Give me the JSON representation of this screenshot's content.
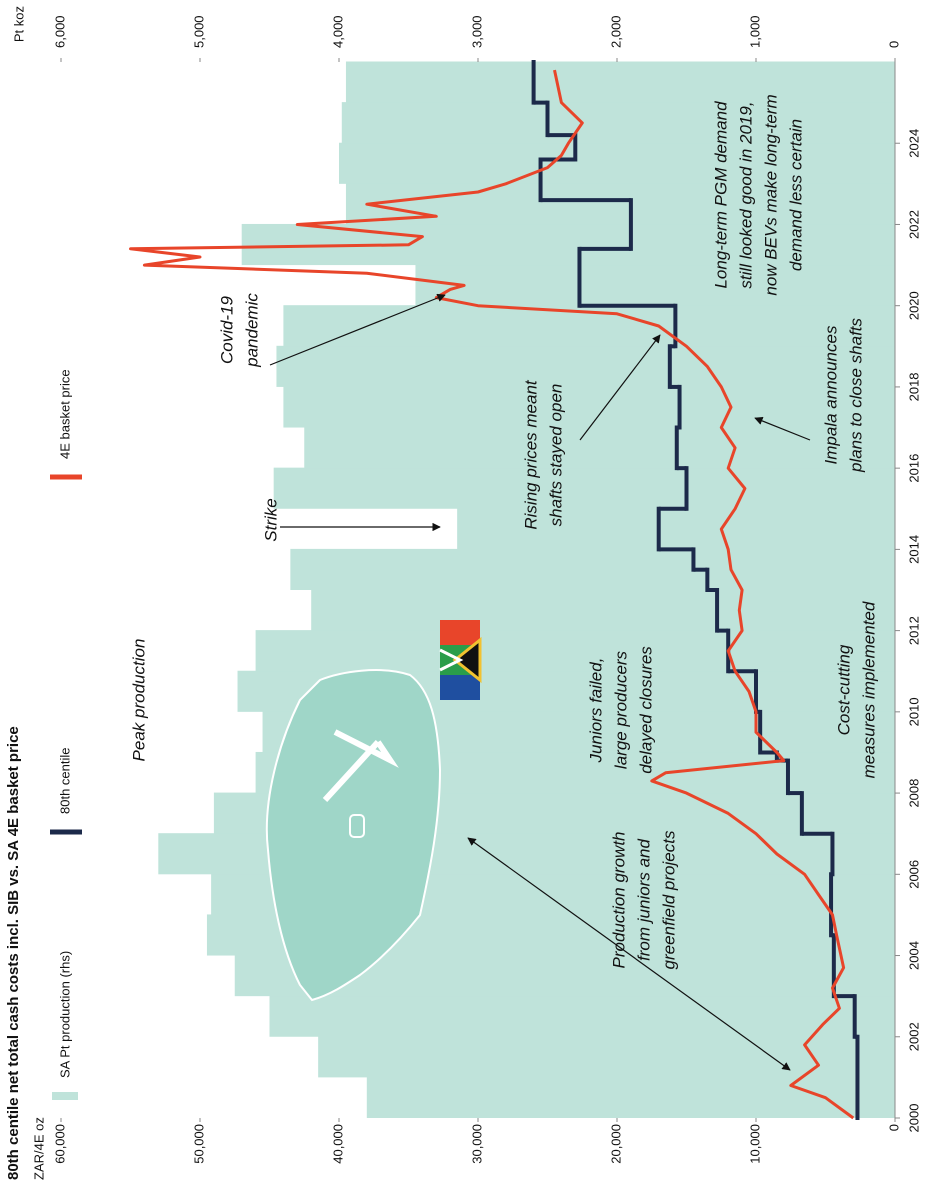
{
  "chart_data": {
    "type": "combo",
    "title": "80th centile net total cash costs incl. SIB vs. SA 4E basket price",
    "y_label": "ZAR/4E oz",
    "y2_label": "Pt koz",
    "xlim": [
      2000,
      2026
    ],
    "xticks": [
      2000,
      2002,
      2004,
      2006,
      2008,
      2010,
      2012,
      2014,
      2016,
      2018,
      2020,
      2022,
      2024
    ],
    "ylim": [
      0,
      60000
    ],
    "yticks": [
      0,
      {
        "value": 10000,
        "label": "10,000"
      },
      {
        "value": 20000,
        "label": "20,000"
      },
      {
        "value": 30000,
        "label": "30,000"
      },
      {
        "value": 40000,
        "label": "40,000"
      },
      {
        "value": 50000,
        "label": "50,000"
      },
      {
        "value": 60000,
        "label": "60,000"
      }
    ],
    "y2lim": [
      0,
      6000
    ],
    "y2ticks": [
      0,
      {
        "value": 1000,
        "label": "1,000"
      },
      {
        "value": 2000,
        "label": "2,000"
      },
      {
        "value": 3000,
        "label": "3,000"
      },
      {
        "value": 4000,
        "label": "4,000"
      },
      {
        "value": 5000,
        "label": "5,000"
      },
      {
        "value": 6000,
        "label": "6,000"
      }
    ],
    "series": [
      {
        "name": "SA Pt production (rhs)",
        "type": "area",
        "step": true,
        "axis": "y2",
        "color": "#bfe3da",
        "x": [
          2000,
          2001,
          2002,
          2003,
          2004,
          2005,
          2006,
          2007,
          2008,
          2009,
          2010,
          2011,
          2012,
          2013,
          2014,
          2015,
          2016,
          2017,
          2018,
          2019,
          2020,
          2021,
          2022,
          2023,
          2024,
          2025
        ],
        "values": [
          3800,
          4150,
          4500,
          4750,
          4950,
          4920,
          5300,
          4900,
          4600,
          4550,
          4730,
          4600,
          4200,
          4350,
          3150,
          4470,
          4250,
          4400,
          4450,
          4400,
          3450,
          4700,
          3950,
          4000,
          3980,
          3950
        ]
      },
      {
        "name": "80th centile",
        "type": "line",
        "step": true,
        "color": "#1c2a4a",
        "x": [
          2000,
          2002,
          2003,
          2004.5,
          2006,
          2007,
          2008,
          2008.8,
          2009,
          2010,
          2011,
          2012,
          2013,
          2013.5,
          2014,
          2015,
          2016,
          2017,
          2018,
          2019,
          2020,
          2021.4,
          2022.6,
          2023.6,
          2024.2,
          2025
        ],
        "values": [
          2700,
          2900,
          4400,
          4600,
          4500,
          6700,
          7700,
          8500,
          9700,
          10000,
          12000,
          12800,
          13500,
          14500,
          17000,
          15000,
          15700,
          15500,
          16200,
          15800,
          22700,
          19000,
          25500,
          23000,
          25000,
          26000
        ]
      },
      {
        "name": "4E basket price",
        "type": "line",
        "step": false,
        "color": "#e8452a",
        "x": [
          2000,
          2000.5,
          2000.8,
          2001.3,
          2001.8,
          2002.3,
          2002.7,
          2003.2,
          2003.7,
          2004.5,
          2005,
          2005.5,
          2006,
          2006.5,
          2007,
          2007.5,
          2008,
          2008.3,
          2008.5,
          2008.8,
          2009,
          2009.5,
          2010,
          2010.5,
          2011,
          2011.5,
          2012,
          2012.5,
          2013,
          2013.5,
          2014,
          2014.5,
          2015,
          2015.5,
          2016,
          2016.5,
          2017,
          2017.5,
          2018,
          2018.5,
          2019,
          2019.5,
          2019.8,
          2020,
          2020.2,
          2020.4,
          2020.5,
          2020.8,
          2021,
          2021.2,
          2021.4,
          2021.5,
          2021.7,
          2022,
          2022.2,
          2022.5,
          2022.8,
          2023,
          2023.4,
          2023.7,
          2024,
          2024.5,
          2025,
          2025.8
        ],
        "values": [
          3000,
          5000,
          7500,
          5500,
          6500,
          5200,
          4000,
          4500,
          3700,
          4200,
          4500,
          5500,
          6500,
          8500,
          10000,
          12000,
          15000,
          17500,
          16500,
          8000,
          8500,
          10000,
          10000,
          10500,
          11500,
          12000,
          11000,
          11200,
          11000,
          11800,
          12000,
          12500,
          11500,
          10800,
          12000,
          11500,
          12500,
          11800,
          12500,
          13500,
          15000,
          17000,
          20000,
          30000,
          33000,
          32000,
          31000,
          38000,
          54000,
          50000,
          55000,
          35000,
          34000,
          43000,
          33000,
          38000,
          30000,
          28000,
          25000,
          24000,
          23500,
          22500,
          24000,
          24500
        ]
      }
    ],
    "annotations": [
      {
        "lines": [
          "Peak production"
        ]
      },
      {
        "lines": [
          "Production growth",
          "from juniors and",
          "greenfield projects"
        ]
      },
      {
        "lines": [
          "Juniors failed,",
          "large producers",
          "delayed closures"
        ]
      },
      {
        "lines": [
          "Cost-cutting",
          "measures implemented"
        ]
      },
      {
        "lines": [
          "Strike"
        ]
      },
      {
        "lines": [
          "Rising prices meant",
          "shafts stayed open"
        ]
      },
      {
        "lines": [
          "Impala announces",
          "plans to close shafts"
        ]
      },
      {
        "lines": [
          "Covid-19",
          "pandemic"
        ]
      },
      {
        "lines": [
          "Long-term PGM demand",
          "still looked good in 2019,",
          "now BEVs make long-term",
          "demand less certain"
        ]
      }
    ]
  }
}
